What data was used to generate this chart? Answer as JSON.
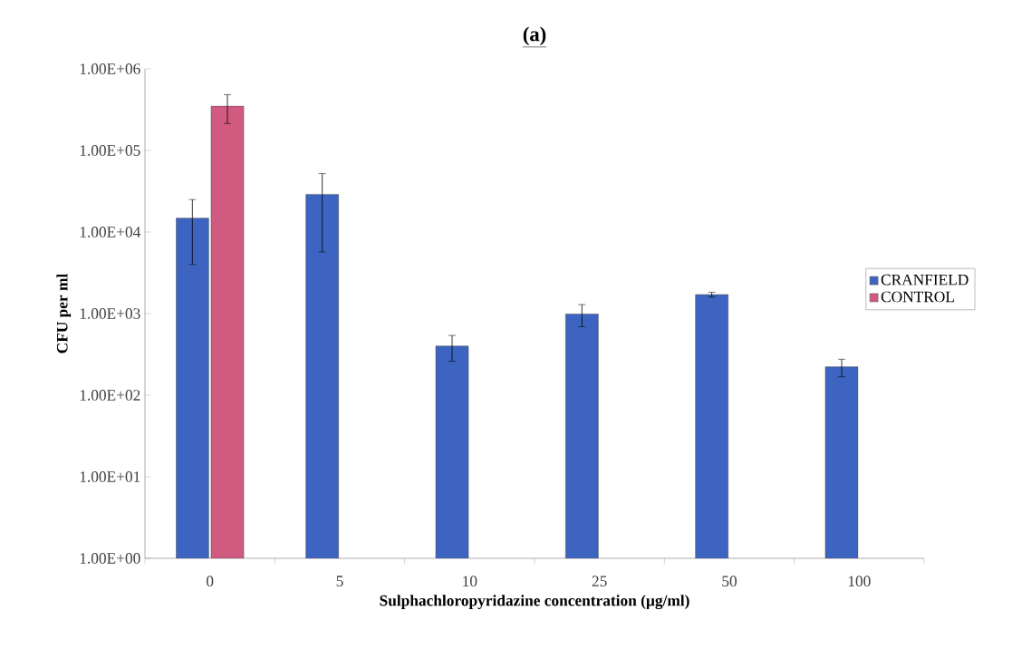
{
  "chart_data": {
    "type": "bar",
    "title": "(a)",
    "xlabel": "Sulphachloropyridazine concentration (µg/ml)",
    "ylabel": "CFU per ml",
    "categories": [
      "0",
      "5",
      "10",
      "25",
      "50",
      "100"
    ],
    "series": [
      {
        "name": "CRANFIELD",
        "color": "#3c64c0",
        "values": [
          14800,
          29000,
          400,
          990,
          1710,
          223
        ],
        "errors": [
          [
            4000,
            25000
          ],
          [
            5700,
            52000
          ],
          [
            260,
            540
          ],
          [
            690,
            1290
          ],
          [
            1600,
            1830
          ],
          [
            168,
            276
          ]
        ]
      },
      {
        "name": "CONTROL",
        "color": "#d05a80",
        "values": [
          350000,
          null,
          null,
          null,
          null,
          null
        ],
        "errors": [
          [
            214000,
            483000
          ],
          null,
          null,
          null,
          null,
          null
        ]
      }
    ],
    "log": "y",
    "ylim": [
      1,
      1000000
    ],
    "yticks": [
      {
        "value": 1,
        "label": "1.00E+00"
      },
      {
        "value": 10,
        "label": "1.00E+01"
      },
      {
        "value": 100,
        "label": "1.00E+02"
      },
      {
        "value": 1000,
        "label": "1.00E+03"
      },
      {
        "value": 10000,
        "label": "1.00E+04"
      },
      {
        "value": 100000,
        "label": "1.00E+05"
      },
      {
        "value": 1000000,
        "label": "1.00E+06"
      }
    ],
    "grid": false,
    "legend": "right"
  }
}
